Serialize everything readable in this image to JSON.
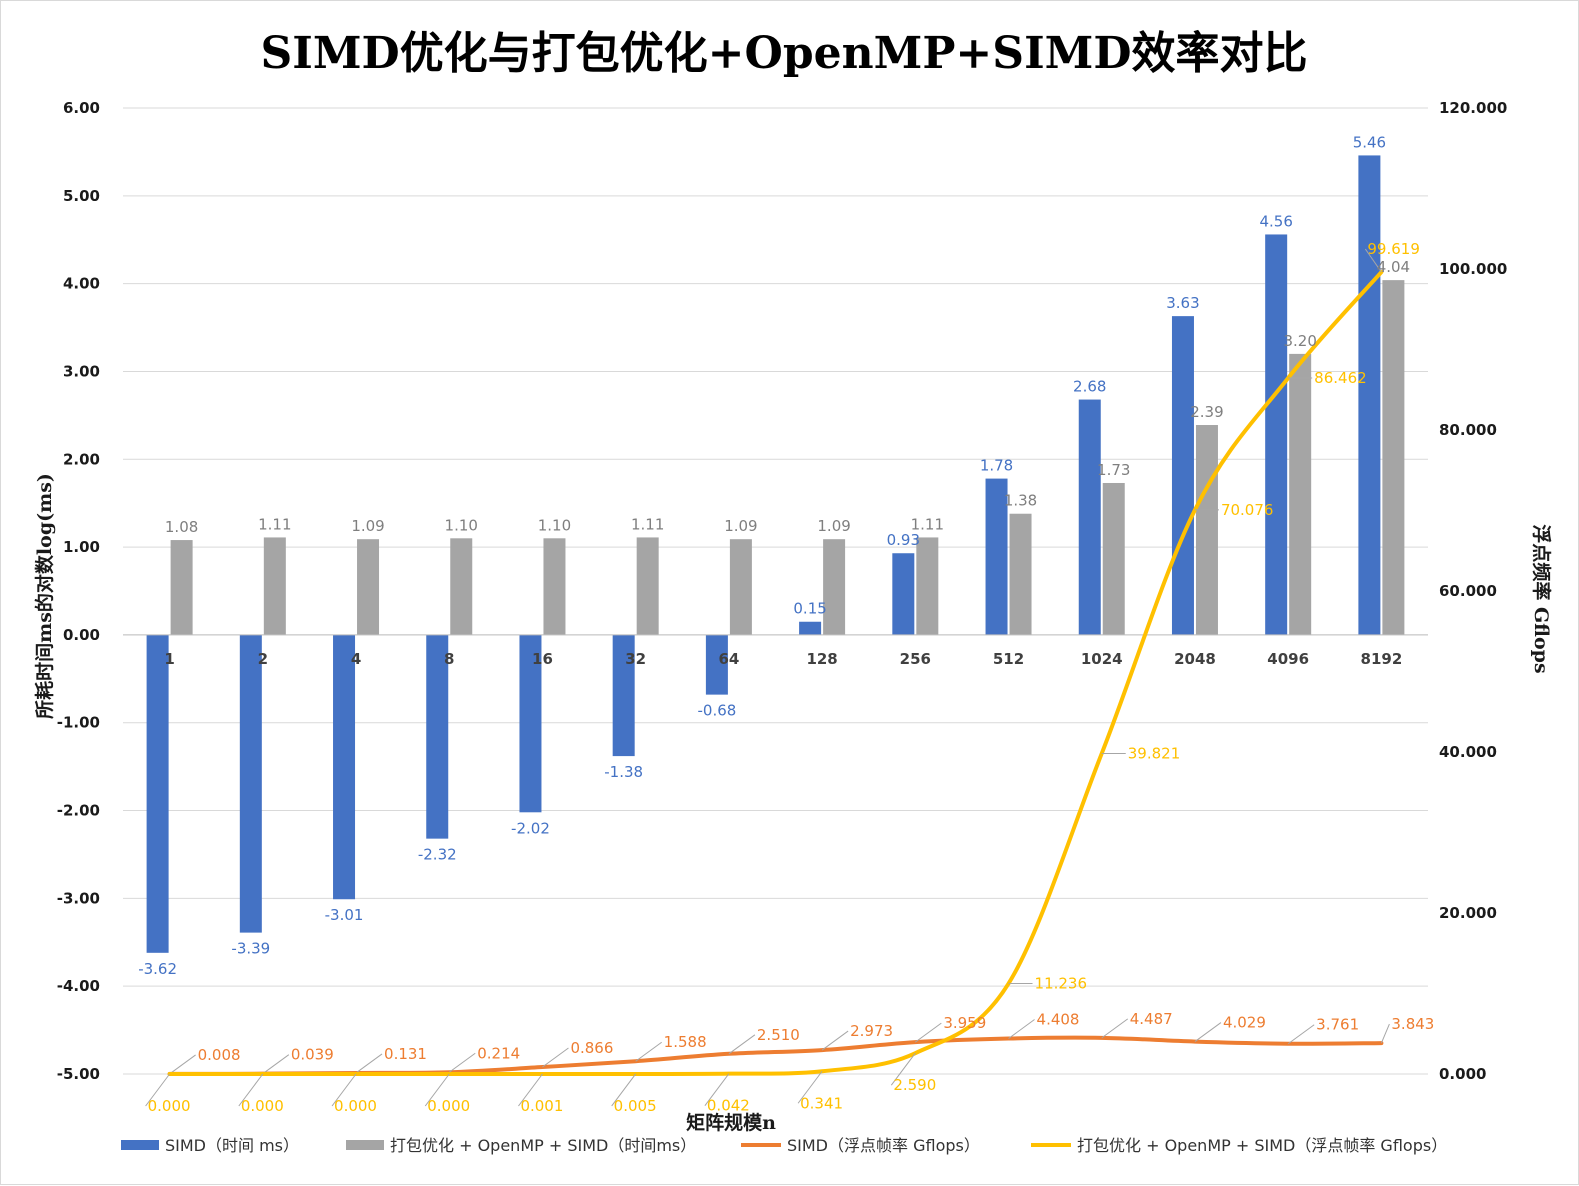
{
  "chart_data": {
    "type": "bar",
    "title": "SIMD优化与打包优化+OpenMP+SIMD效率对比",
    "xlabel": "矩阵规模n",
    "ylabel": "所耗时间ms的对数log(ms)",
    "ylabel_right": "浮点频率 Gflops",
    "categories": [
      "1",
      "2",
      "4",
      "8",
      "16",
      "32",
      "64",
      "128",
      "256",
      "512",
      "1024",
      "2048",
      "4096",
      "8192"
    ],
    "ylim": [
      -5,
      6
    ],
    "ylim_right": [
      0,
      120
    ],
    "y_ticks": [
      "-5.00",
      "-4.00",
      "-3.00",
      "-2.00",
      "-1.00",
      "0.00",
      "1.00",
      "2.00",
      "3.00",
      "4.00",
      "5.00",
      "6.00"
    ],
    "y_right_ticks": [
      "0.000",
      "20.000",
      "40.000",
      "60.000",
      "80.000",
      "100.000",
      "120.000"
    ],
    "grid": true,
    "legend_position": "bottom",
    "series": [
      {
        "name": "SIMD（时间 ms）",
        "kind": "bar",
        "axis": "left",
        "color": "#4472C4",
        "values": [
          -3.62,
          -3.39,
          -3.01,
          -2.32,
          -2.02,
          -1.38,
          -0.68,
          0.15,
          0.93,
          1.78,
          2.68,
          3.63,
          4.56,
          5.46
        ],
        "labels": [
          "-3.62",
          "-3.39",
          "-3.01",
          "-2.32",
          "-2.02",
          "-1.38",
          "-0.68",
          "0.15",
          "0.93",
          "1.78",
          "2.68",
          "3.63",
          "4.56",
          "5.46"
        ]
      },
      {
        "name": "打包优化 + OpenMP + SIMD（时间ms）",
        "kind": "bar",
        "axis": "left",
        "color": "#A5A5A5",
        "values": [
          1.08,
          1.11,
          1.09,
          1.1,
          1.1,
          1.11,
          1.09,
          1.09,
          1.11,
          1.38,
          1.73,
          2.39,
          3.2,
          4.04
        ],
        "labels": [
          "1.08",
          "1.11",
          "1.09",
          "1.10",
          "1.10",
          "1.11",
          "1.09",
          "1.09",
          "1.11",
          "1.38",
          "1.73",
          "2.39",
          "3.20",
          "4.04"
        ]
      },
      {
        "name": "SIMD（浮点帧率 Gflops）",
        "kind": "line",
        "axis": "right",
        "color": "#ED7D31",
        "values": [
          0.008,
          0.039,
          0.131,
          0.214,
          0.866,
          1.588,
          2.51,
          2.973,
          3.959,
          4.408,
          4.487,
          4.029,
          3.761,
          3.843
        ],
        "labels": [
          "0.008",
          "0.039",
          "0.131",
          "0.214",
          "0.866",
          "1.588",
          "2.510",
          "2.973",
          "3.959",
          "4.408",
          "4.487",
          "4.029",
          "3.761",
          "3.843"
        ]
      },
      {
        "name": "打包优化 + OpenMP + SIMD（浮点帧率 Gflops）",
        "kind": "line",
        "axis": "right",
        "color": "#FFC000",
        "values": [
          0.0,
          0.0,
          0.0,
          0.0,
          0.001,
          0.005,
          0.042,
          0.341,
          2.59,
          11.236,
          39.821,
          70.076,
          86.462,
          99.619
        ],
        "labels": [
          "0.000",
          "0.000",
          "0.000",
          "0.000",
          "0.001",
          "0.005",
          "0.042",
          "0.341",
          "2.590",
          "11.236",
          "39.821",
          "70.076",
          "86.462",
          "99.619"
        ]
      }
    ]
  }
}
